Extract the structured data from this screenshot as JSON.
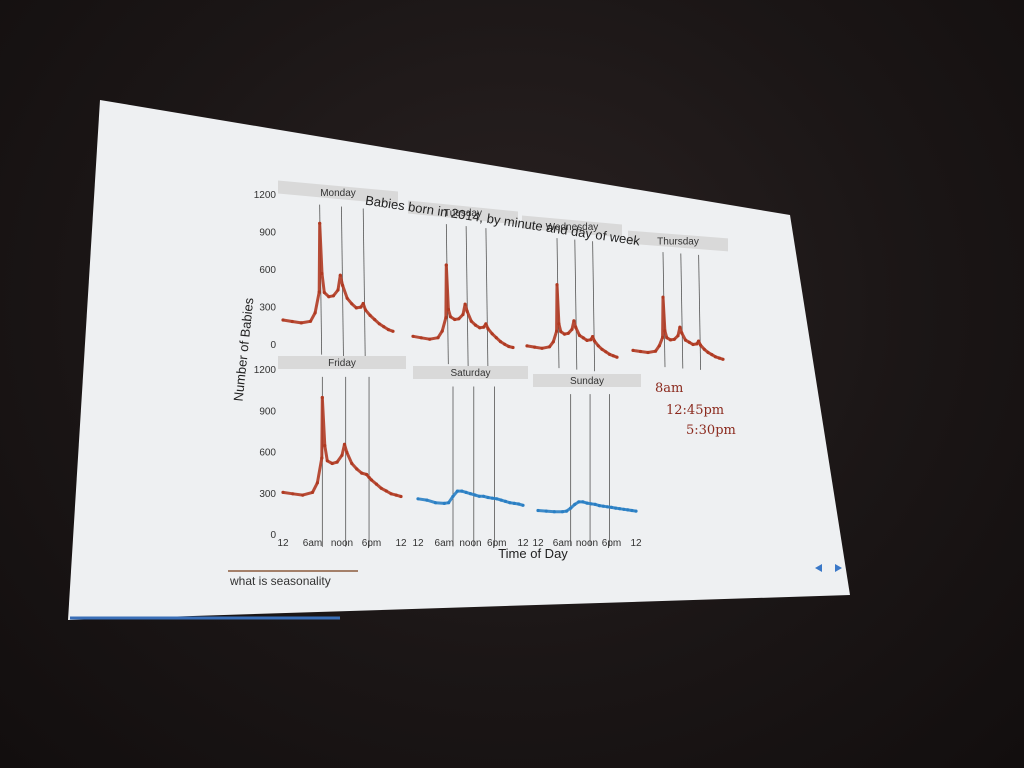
{
  "slide": {
    "caption": "what is seasonality",
    "nav_prev_icon": "triangle-left-icon",
    "nav_next_icon": "triangle-right-icon",
    "accent_color": "#3a78c8",
    "underline_color": "#8b5a3c"
  },
  "annotations": {
    "line1": "8am",
    "line2": "12:45pm",
    "line3": "5:30pm",
    "color": "#8b2a1e"
  },
  "chart_data": {
    "type": "line",
    "title": "Babies born in 2014, by minute and day of week",
    "xlabel": "Time of Day",
    "ylabel": "Number of Babies",
    "ylim": [
      0,
      1200
    ],
    "yticks": [
      "0",
      "300",
      "600",
      "900",
      "1200"
    ],
    "xlim": [
      0,
      24
    ],
    "xticks": [
      "12",
      "6am",
      "noon",
      "6pm",
      "12"
    ],
    "reference_lines_hours": [
      8,
      12.75,
      17.5
    ],
    "weekday_color": "#b03a22",
    "weekend_color": "#2a7fc4",
    "series": [
      {
        "name": "Monday",
        "hours": [
          0,
          2,
          4,
          6,
          7,
          7.9,
          8,
          8.5,
          9,
          10,
          11,
          12,
          12.5,
          13,
          14,
          15,
          16,
          17,
          17.5,
          18,
          19,
          20,
          21,
          22,
          23,
          24
        ],
        "values": [
          200,
          195,
          190,
          210,
          280,
          450,
          1000,
          600,
          450,
          420,
          430,
          480,
          600,
          520,
          420,
          380,
          350,
          360,
          390,
          340,
          300,
          270,
          240,
          220,
          200,
          190
        ]
      },
      {
        "name": "Tuesday",
        "hours": [
          0,
          2,
          4,
          6,
          7,
          7.9,
          8,
          8.5,
          9,
          10,
          11,
          12,
          12.5,
          13,
          14,
          15,
          16,
          17,
          17.5,
          18,
          19,
          20,
          21,
          22,
          23,
          24
        ],
        "values": [
          160,
          155,
          150,
          170,
          230,
          350,
          800,
          420,
          360,
          340,
          350,
          390,
          480,
          420,
          340,
          310,
          290,
          300,
          330,
          290,
          250,
          220,
          190,
          170,
          155,
          150
        ]
      },
      {
        "name": "Wednesday",
        "hours": [
          0,
          2,
          4,
          6,
          7,
          7.9,
          8,
          8.5,
          9,
          10,
          11,
          12,
          12.5,
          13,
          14,
          15,
          16,
          17,
          17.5,
          18,
          19,
          20,
          21,
          22,
          23,
          24
        ],
        "values": [
          130,
          125,
          120,
          140,
          190,
          290,
          720,
          360,
          290,
          270,
          280,
          320,
          400,
          340,
          270,
          250,
          230,
          240,
          270,
          230,
          190,
          160,
          140,
          120,
          110,
          100
        ]
      },
      {
        "name": "Thursday",
        "hours": [
          0,
          2,
          4,
          6,
          7,
          7.9,
          8,
          8.5,
          9,
          10,
          11,
          12,
          12.5,
          13,
          14,
          15,
          16,
          17,
          17.5,
          18,
          19,
          20,
          21,
          22,
          23,
          24
        ],
        "values": [
          100,
          95,
          90,
          110,
          170,
          260,
          680,
          330,
          260,
          240,
          250,
          290,
          380,
          320,
          250,
          230,
          210,
          220,
          250,
          210,
          170,
          140,
          120,
          100,
          90,
          80
        ]
      },
      {
        "name": "Friday",
        "hours": [
          0,
          2,
          4,
          6,
          7,
          7.9,
          8,
          8.5,
          9,
          10,
          11,
          12,
          12.5,
          13,
          14,
          15,
          16,
          17,
          17.5,
          18,
          19,
          20,
          21,
          22,
          23,
          24
        ],
        "values": [
          310,
          300,
          290,
          310,
          380,
          560,
          1000,
          650,
          540,
          520,
          530,
          580,
          660,
          600,
          520,
          480,
          450,
          440,
          420,
          400,
          370,
          340,
          320,
          300,
          290,
          280
        ]
      },
      {
        "name": "Saturday",
        "hours": [
          0,
          2,
          4,
          6,
          7,
          8,
          9,
          10,
          11,
          12,
          13,
          14,
          15,
          16,
          17,
          18,
          19,
          20,
          21,
          22,
          23,
          24
        ],
        "values": [
          280,
          270,
          250,
          245,
          250,
          300,
          340,
          340,
          330,
          320,
          310,
          300,
          300,
          290,
          285,
          280,
          270,
          260,
          250,
          245,
          240,
          230
        ]
      },
      {
        "name": "Sunday",
        "hours": [
          0,
          2,
          4,
          6,
          7,
          8,
          9,
          10,
          11,
          12,
          13,
          14,
          15,
          16,
          17,
          18,
          19,
          20,
          21,
          22,
          23,
          24
        ],
        "values": [
          200,
          195,
          190,
          190,
          195,
          220,
          250,
          270,
          270,
          260,
          255,
          250,
          240,
          235,
          230,
          225,
          220,
          215,
          210,
          205,
          200,
          195
        ]
      }
    ]
  }
}
